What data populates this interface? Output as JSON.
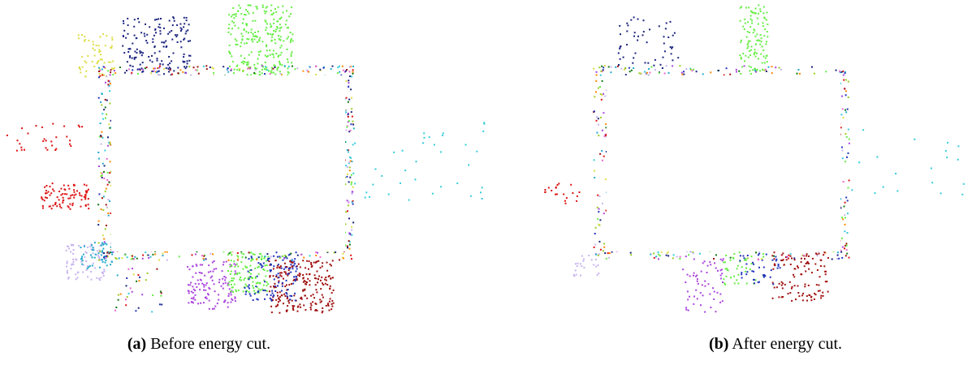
{
  "figures": [
    {
      "label": "(a)",
      "caption": "Before energy cut."
    },
    {
      "label": "(b)",
      "caption": "After energy cut."
    }
  ]
}
